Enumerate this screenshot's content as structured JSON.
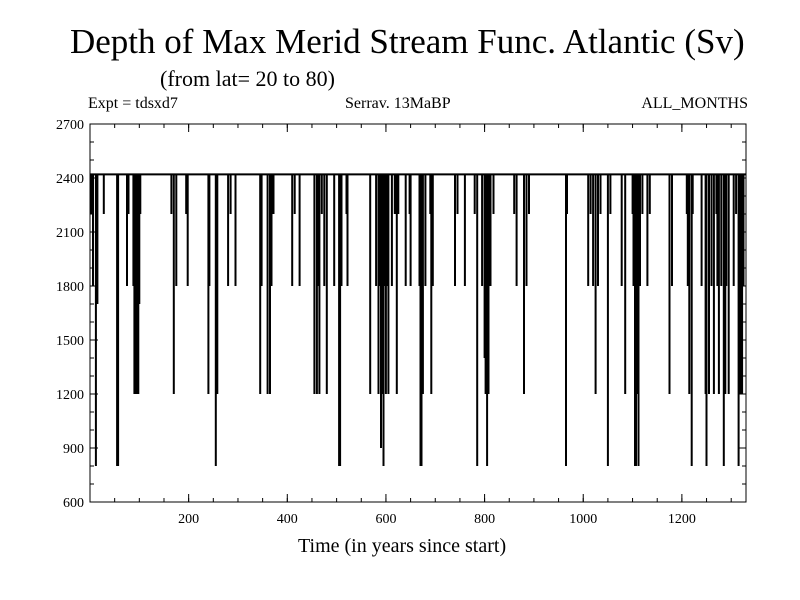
{
  "chart_data": {
    "type": "line",
    "title": "Depth of Max Merid Stream Func. Atlantic (Sv)",
    "subtitle": "(from lat= 20 to 80)",
    "experiment": "Expt = tdsxd7",
    "run_label": "Serrav.   13MaBP",
    "season": "ALL_MONTHS",
    "xlabel": "Time (in years since start)",
    "ylabel": "",
    "xlim": [
      0,
      1330
    ],
    "ylim": [
      600,
      2700
    ],
    "xticks": [
      200,
      400,
      600,
      800,
      1000,
      1200
    ],
    "yticks": [
      600,
      900,
      1200,
      1500,
      1800,
      2100,
      2400,
      2700
    ],
    "baseline": 2420,
    "grid": false,
    "series": [
      {
        "color": "#000000",
        "dips": [
          [
            3,
            2200
          ],
          [
            6,
            1800
          ],
          [
            12,
            800
          ],
          [
            15,
            1700
          ],
          [
            28,
            2200
          ],
          [
            55,
            800
          ],
          [
            57,
            800
          ],
          [
            75,
            1800
          ],
          [
            78,
            2200
          ],
          [
            88,
            1800
          ],
          [
            90,
            1200
          ],
          [
            92,
            1800
          ],
          [
            94,
            1200
          ],
          [
            96,
            1800
          ],
          [
            98,
            1200
          ],
          [
            100,
            1700
          ],
          [
            102,
            2200
          ],
          [
            165,
            2200
          ],
          [
            170,
            1200
          ],
          [
            175,
            1800
          ],
          [
            195,
            2200
          ],
          [
            198,
            1800
          ],
          [
            240,
            1200
          ],
          [
            242,
            1800
          ],
          [
            255,
            800
          ],
          [
            258,
            1200
          ],
          [
            280,
            1800
          ],
          [
            285,
            2200
          ],
          [
            295,
            1800
          ],
          [
            345,
            1200
          ],
          [
            348,
            1800
          ],
          [
            360,
            1200
          ],
          [
            365,
            1200
          ],
          [
            368,
            1800
          ],
          [
            372,
            2200
          ],
          [
            410,
            1800
          ],
          [
            415,
            2200
          ],
          [
            425,
            1800
          ],
          [
            455,
            1200
          ],
          [
            460,
            1200
          ],
          [
            462,
            1800
          ],
          [
            465,
            1200
          ],
          [
            470,
            2200
          ],
          [
            475,
            1800
          ],
          [
            480,
            1200
          ],
          [
            495,
            1800
          ],
          [
            505,
            800
          ],
          [
            507,
            800
          ],
          [
            510,
            1800
          ],
          [
            520,
            2200
          ],
          [
            522,
            1800
          ],
          [
            568,
            1200
          ],
          [
            580,
            1800
          ],
          [
            585,
            1200
          ],
          [
            588,
            1800
          ],
          [
            590,
            900
          ],
          [
            592,
            1200
          ],
          [
            595,
            800
          ],
          [
            598,
            1800
          ],
          [
            600,
            1200
          ],
          [
            602,
            1800
          ],
          [
            605,
            1200
          ],
          [
            612,
            1800
          ],
          [
            618,
            2200
          ],
          [
            622,
            1200
          ],
          [
            625,
            2200
          ],
          [
            640,
            1800
          ],
          [
            648,
            2200
          ],
          [
            650,
            1800
          ],
          [
            668,
            1800
          ],
          [
            670,
            800
          ],
          [
            672,
            800
          ],
          [
            675,
            1200
          ],
          [
            680,
            1800
          ],
          [
            690,
            2200
          ],
          [
            692,
            1200
          ],
          [
            695,
            1800
          ],
          [
            740,
            1800
          ],
          [
            745,
            2200
          ],
          [
            760,
            1800
          ],
          [
            780,
            2200
          ],
          [
            785,
            800
          ],
          [
            795,
            1800
          ],
          [
            800,
            1400
          ],
          [
            802,
            1200
          ],
          [
            805,
            800
          ],
          [
            808,
            1200
          ],
          [
            812,
            1800
          ],
          [
            818,
            2200
          ],
          [
            860,
            2200
          ],
          [
            865,
            1800
          ],
          [
            880,
            1200
          ],
          [
            885,
            1800
          ],
          [
            890,
            2200
          ],
          [
            965,
            800
          ],
          [
            967,
            2200
          ],
          [
            1010,
            1800
          ],
          [
            1015,
            2200
          ],
          [
            1020,
            1800
          ],
          [
            1025,
            1200
          ],
          [
            1030,
            1800
          ],
          [
            1035,
            2200
          ],
          [
            1050,
            800
          ],
          [
            1055,
            2200
          ],
          [
            1078,
            1800
          ],
          [
            1085,
            1200
          ],
          [
            1100,
            2200
          ],
          [
            1102,
            1800
          ],
          [
            1105,
            800
          ],
          [
            1107,
            800
          ],
          [
            1110,
            1200
          ],
          [
            1112,
            800
          ],
          [
            1115,
            1800
          ],
          [
            1120,
            2200
          ],
          [
            1130,
            1800
          ],
          [
            1135,
            2200
          ],
          [
            1175,
            1200
          ],
          [
            1180,
            1800
          ],
          [
            1210,
            2200
          ],
          [
            1212,
            1800
          ],
          [
            1215,
            1200
          ],
          [
            1220,
            800
          ],
          [
            1222,
            2200
          ],
          [
            1240,
            1800
          ],
          [
            1248,
            1200
          ],
          [
            1250,
            800
          ],
          [
            1255,
            1200
          ],
          [
            1260,
            1800
          ],
          [
            1265,
            1200
          ],
          [
            1270,
            2200
          ],
          [
            1272,
            1800
          ],
          [
            1275,
            1200
          ],
          [
            1280,
            1800
          ],
          [
            1285,
            800
          ],
          [
            1288,
            1200
          ],
          [
            1290,
            1800
          ],
          [
            1295,
            1200
          ],
          [
            1305,
            1800
          ],
          [
            1310,
            2200
          ],
          [
            1315,
            800
          ],
          [
            1318,
            1200
          ],
          [
            1320,
            1800
          ],
          [
            1322,
            1200
          ],
          [
            1325,
            1800
          ]
        ]
      }
    ]
  }
}
